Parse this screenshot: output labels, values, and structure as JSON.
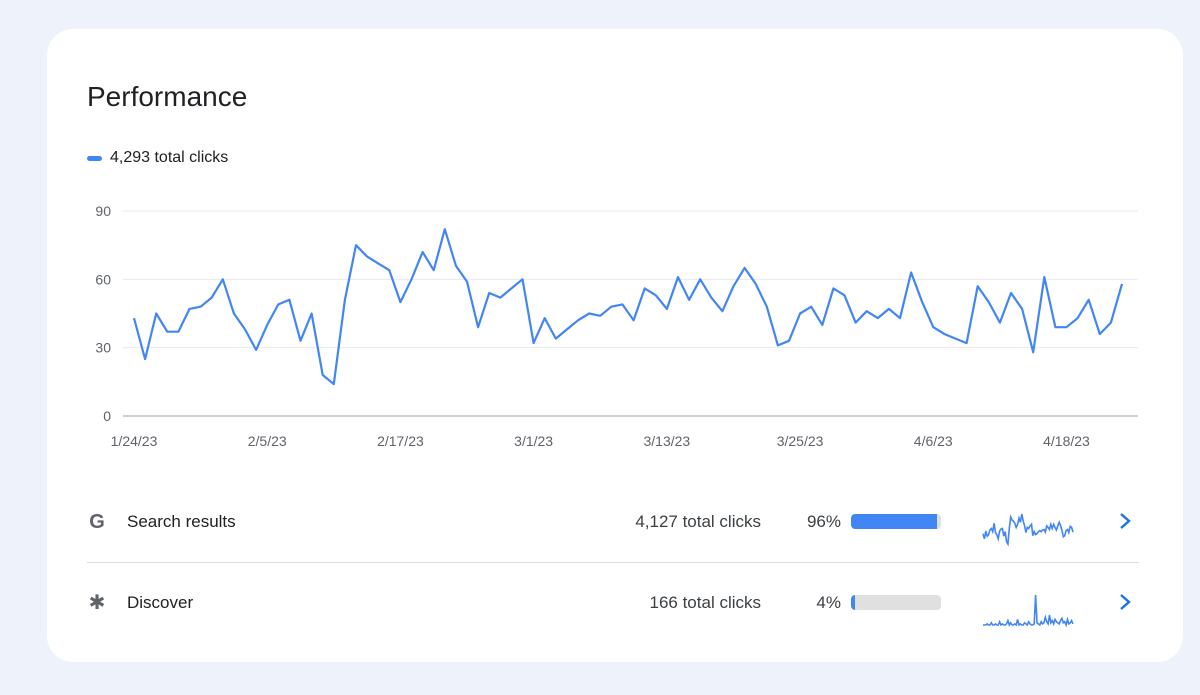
{
  "card": {
    "title": "Performance",
    "legend": {
      "label": "4,293 total clicks",
      "color": "#4285f4"
    }
  },
  "chart_data": {
    "type": "line",
    "title": "",
    "xlabel": "",
    "ylabel": "",
    "ylim": [
      0,
      90
    ],
    "yticks": [
      "0",
      "30",
      "60",
      "90"
    ],
    "grid": true,
    "xtick_labels": [
      "1/24/23",
      "2/5/23",
      "2/17/23",
      "3/1/23",
      "3/13/23",
      "3/25/23",
      "4/6/23",
      "4/18/23"
    ],
    "series": [
      {
        "name": "4,293 total clicks",
        "color": "#4285f4",
        "values": [
          43,
          25,
          45,
          37,
          37,
          47,
          48,
          52,
          60,
          45,
          38,
          29,
          40,
          49,
          51,
          33,
          45,
          18,
          14,
          51,
          75,
          70,
          67,
          64,
          50,
          60,
          72,
          64,
          82,
          66,
          59,
          39,
          54,
          52,
          56,
          60,
          32,
          43,
          34,
          38,
          42,
          45,
          44,
          48,
          49,
          42,
          56,
          53,
          47,
          61,
          51,
          60,
          52,
          46,
          57,
          65,
          58,
          48,
          31,
          33,
          45,
          48,
          40,
          56,
          53,
          41,
          46,
          43,
          47,
          43,
          63,
          50,
          39,
          36,
          34,
          32,
          57,
          50,
          41,
          54,
          47,
          28,
          61,
          39,
          39,
          43,
          51,
          36,
          41,
          58
        ]
      }
    ]
  },
  "rows": [
    {
      "icon": "google-g-icon",
      "icon_glyph": "G",
      "label": "Search results",
      "clicks": "4,127 total clicks",
      "percent": "96%",
      "fraction": 0.96,
      "spark": [
        40,
        30,
        45,
        35,
        38,
        47,
        50,
        44,
        60,
        42,
        38,
        30,
        45,
        49,
        50,
        35,
        44,
        25,
        20,
        50,
        72,
        66,
        64,
        60,
        52,
        58,
        70,
        62,
        78,
        64,
        56,
        42,
        52,
        50,
        55,
        58,
        36,
        44,
        38,
        40,
        44,
        46,
        44,
        47,
        48,
        43,
        55,
        52,
        48,
        58,
        50,
        58,
        52,
        47,
        55,
        62,
        56,
        47,
        34,
        36,
        46,
        48,
        42,
        54,
        52,
        43
      ]
    },
    {
      "icon": "asterisk-icon",
      "icon_glyph": "✱",
      "label": "Discover",
      "clicks": "166 total clicks",
      "percent": "4%",
      "fraction": 0.04,
      "spark": [
        1,
        1,
        1,
        2,
        1,
        1,
        3,
        1,
        1,
        2,
        1,
        1,
        4,
        1,
        2,
        1,
        1,
        2,
        5,
        1,
        3,
        1,
        1,
        2,
        1,
        6,
        1,
        2,
        1,
        1,
        3,
        2,
        1,
        4,
        2,
        1,
        1,
        2,
        28,
        3,
        2,
        1,
        4,
        2,
        3,
        8,
        4,
        2,
        10,
        3,
        5,
        2,
        6,
        4,
        3,
        2,
        5,
        7,
        3,
        4,
        1,
        6,
        2,
        3,
        5,
        2
      ]
    }
  ],
  "colors": {
    "accent": "#4285f4",
    "bar_track": "#e0e0e0",
    "grid": "#e8eaed"
  }
}
